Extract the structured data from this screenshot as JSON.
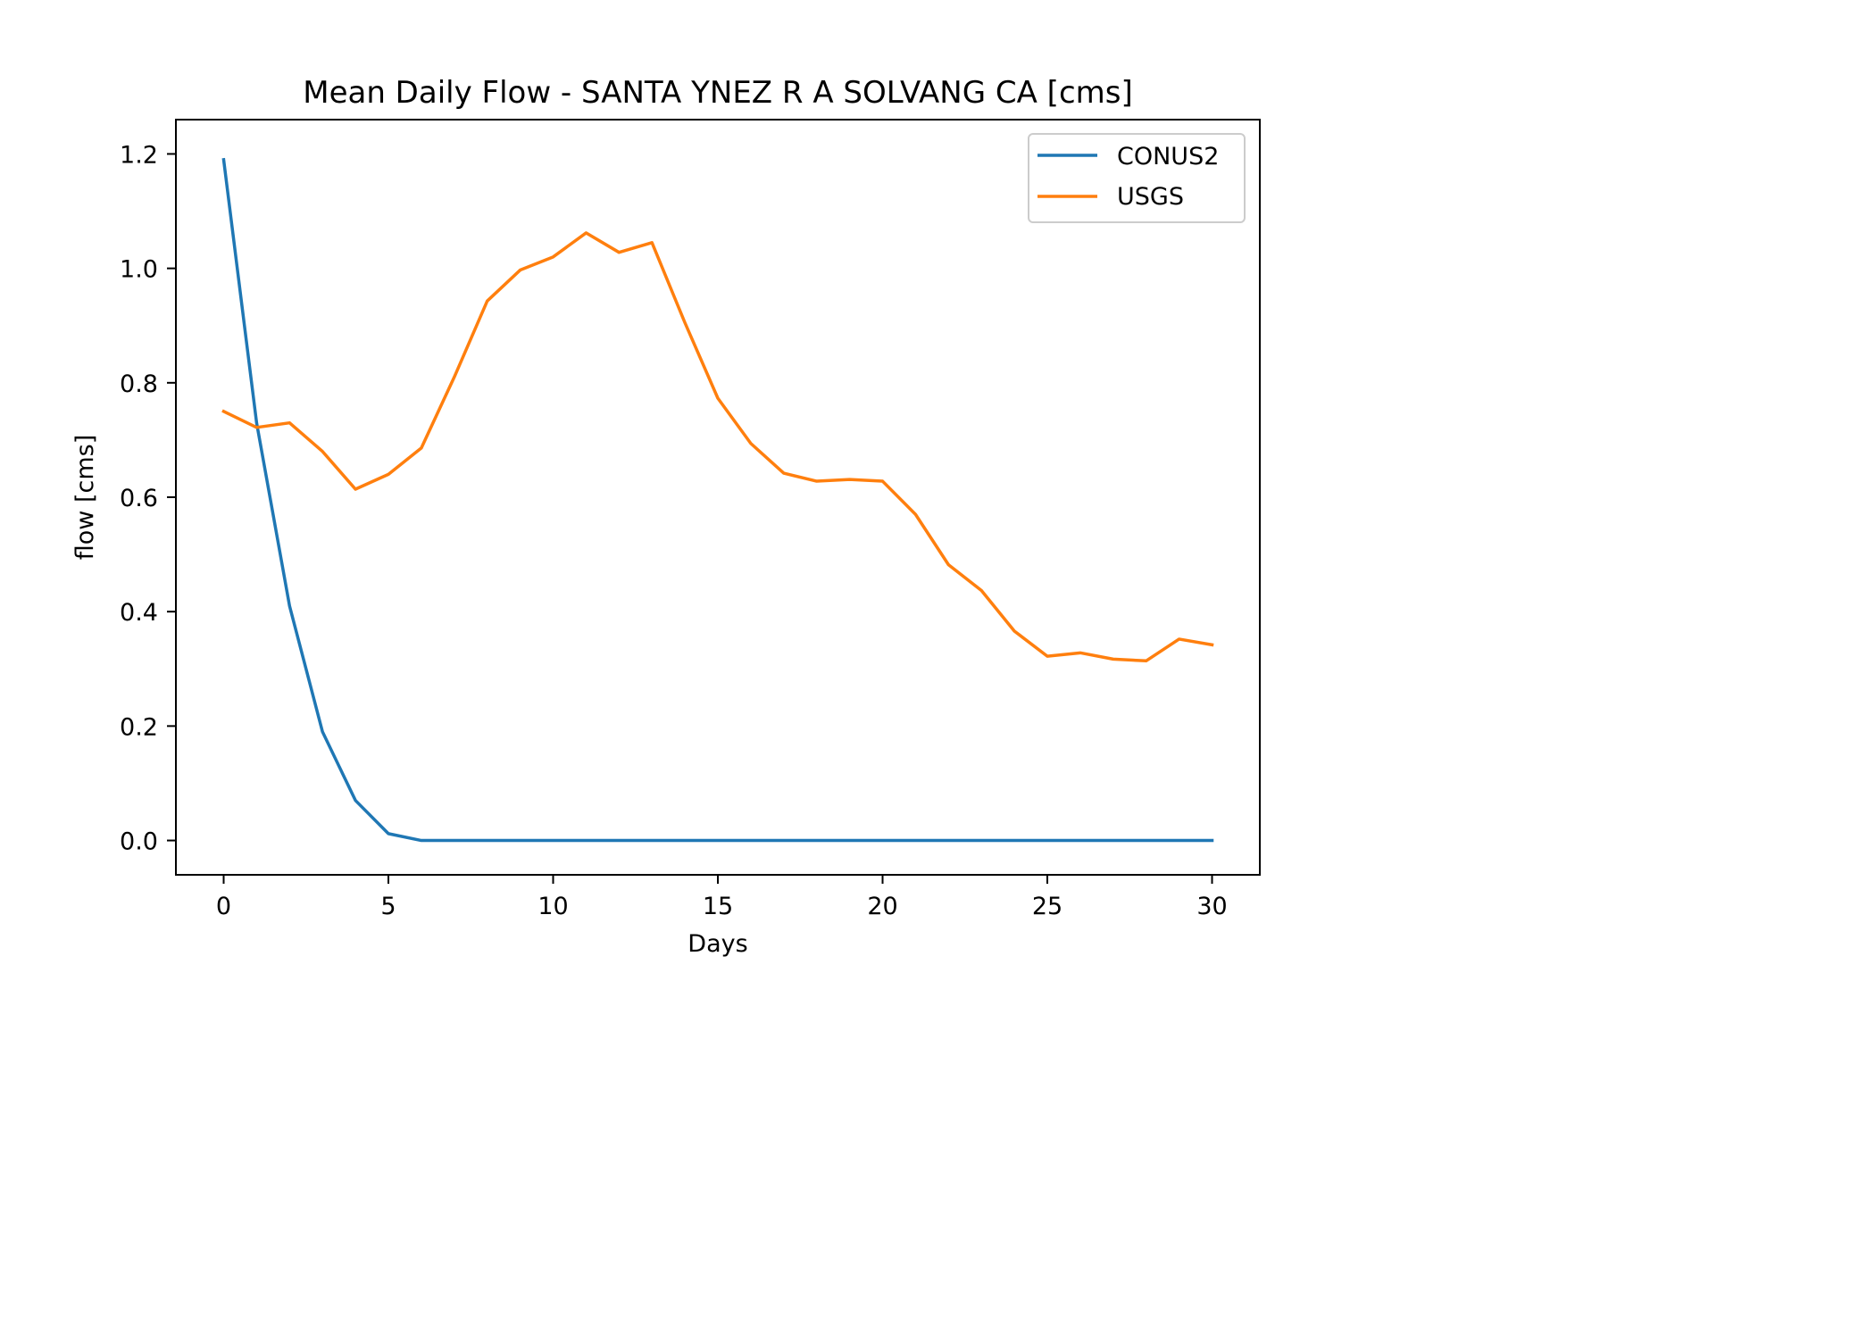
{
  "chart_data": {
    "type": "line",
    "title": "Mean Daily Flow - SANTA YNEZ R A SOLVANG CA [cms]",
    "xlabel": "Days",
    "ylabel": "flow [cms]",
    "xlim": [
      -1.45,
      31.45
    ],
    "ylim": [
      -0.06,
      1.26
    ],
    "xticks": [
      0,
      5,
      10,
      15,
      20,
      25,
      30
    ],
    "xtick_labels": [
      "0",
      "5",
      "10",
      "15",
      "20",
      "25",
      "30"
    ],
    "yticks": [
      0.0,
      0.2,
      0.4,
      0.6,
      0.8,
      1.0,
      1.2
    ],
    "ytick_labels": [
      "0.0",
      "0.2",
      "0.4",
      "0.6",
      "0.8",
      "1.0",
      "1.2"
    ],
    "grid": false,
    "legend_position": "top-right",
    "x": [
      0,
      1,
      2,
      3,
      4,
      5,
      6,
      7,
      8,
      9,
      10,
      11,
      12,
      13,
      14,
      15,
      16,
      17,
      18,
      19,
      20,
      21,
      22,
      23,
      24,
      25,
      26,
      27,
      28,
      29,
      30
    ],
    "series": [
      {
        "name": "CONUS2",
        "color": "#1f77b4",
        "values": [
          1.19,
          0.73,
          0.41,
          0.19,
          0.07,
          0.012,
          0.0,
          0.0,
          0.0,
          0.0,
          0.0,
          0.0,
          0.0,
          0.0,
          0.0,
          0.0,
          0.0,
          0.0,
          0.0,
          0.0,
          0.0,
          0.0,
          0.0,
          0.0,
          0.0,
          0.0,
          0.0,
          0.0,
          0.0,
          0.0,
          0.0
        ]
      },
      {
        "name": "USGS",
        "color": "#ff7f0e",
        "values": [
          0.75,
          0.722,
          0.73,
          0.68,
          0.614,
          0.64,
          0.686,
          0.81,
          0.943,
          0.997,
          1.02,
          1.062,
          1.028,
          1.045,
          0.905,
          0.773,
          0.694,
          0.642,
          0.628,
          0.631,
          0.628,
          0.57,
          0.482,
          0.437,
          0.366,
          0.322,
          0.328,
          0.317,
          0.314,
          0.352,
          0.342
        ]
      }
    ]
  }
}
